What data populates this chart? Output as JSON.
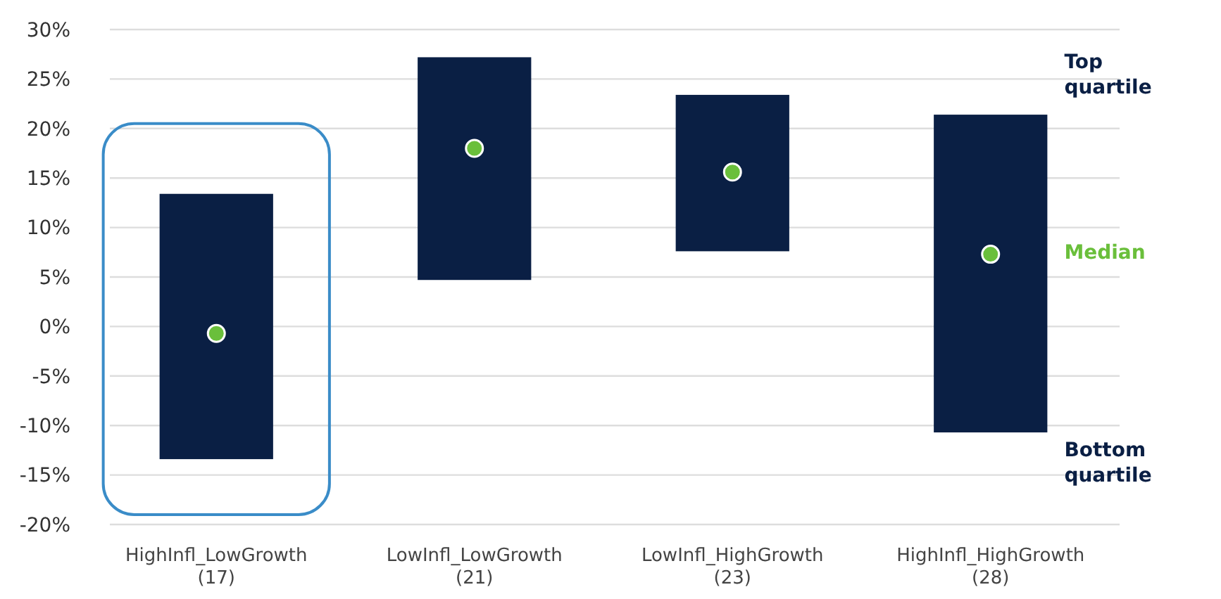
{
  "chart_data": {
    "type": "bar",
    "categories": [
      "HighInfl_LowGrowth\n(17)",
      "LowInfl_LowGrowth\n(21)",
      "LowInfl_HighGrowth\n(23)",
      "HighInfl_HighGrowth\n(28)"
    ],
    "series": [
      {
        "color": "#0a1f44",
        "base": [
          -13.4,
          4.7,
          7.6,
          -10.7
        ],
        "values": [
          26.8,
          22.5,
          15.8,
          32.1
        ]
      },
      {
        "type": "scatter",
        "color": "#6abf3b",
        "x": [
          "HighInfl_LowGrowth\n(17)",
          "LowInfl_LowGrowth\n(21)",
          "LowInfl_HighGrowth\n(23)",
          "HighInfl_HighGrowth\n(28)"
        ],
        "values": [
          -0.7,
          18.0,
          15.6,
          7.3
        ]
      }
    ],
    "ylim": [
      -20,
      30
    ],
    "yticks": [
      {
        "value": -20,
        "label": "-20%"
      },
      {
        "value": -15,
        "label": "-15%"
      },
      {
        "value": -10,
        "label": "-10%"
      },
      {
        "value": -5,
        "label": "-5%"
      },
      {
        "value": 0,
        "label": "0%"
      },
      {
        "value": 5,
        "label": "5%"
      },
      {
        "value": 10,
        "label": "10%"
      },
      {
        "value": 15,
        "label": "15%"
      },
      {
        "value": 20,
        "label": "20%"
      },
      {
        "value": 25,
        "label": "25%"
      },
      {
        "value": 30,
        "label": "30%"
      }
    ],
    "grid": "y",
    "marker": "circle",
    "annotations": [
      "Top quartile",
      "Median",
      "Bottom quartile"
    ]
  }
}
